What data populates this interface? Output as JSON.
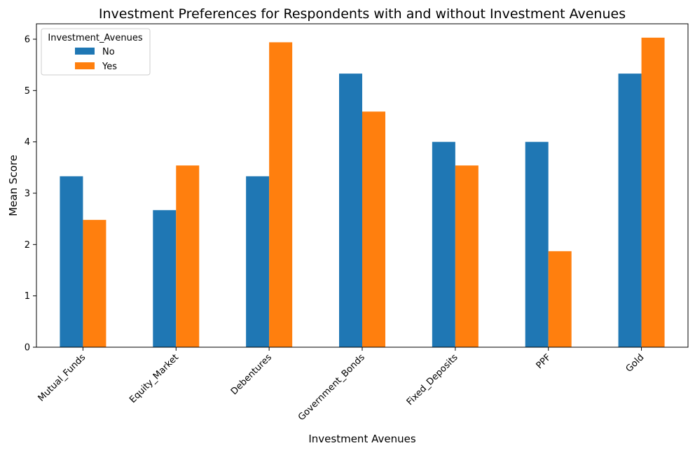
{
  "chart_data": {
    "type": "bar",
    "title": "Investment Preferences for Respondents with and without Investment Avenues",
    "xlabel": "Investment Avenues",
    "ylabel": "Mean Score",
    "categories": [
      "Mutual_Funds",
      "Equity_Market",
      "Debentures",
      "Government_Bonds",
      "Fixed_Deposits",
      "PPF",
      "Gold"
    ],
    "ylim": [
      0,
      6.3
    ],
    "yticks": [
      "0",
      "1",
      "2",
      "3",
      "4",
      "5",
      "6"
    ],
    "legend": {
      "title": "Investment_Avenues",
      "position": "top-left"
    },
    "grid": false,
    "series": [
      {
        "name": "No",
        "color": "#1f77b4",
        "values": [
          3.33,
          2.67,
          3.33,
          5.33,
          4.0,
          4.0,
          5.33
        ]
      },
      {
        "name": "Yes",
        "color": "#ff7f0e",
        "values": [
          2.48,
          3.54,
          5.94,
          4.59,
          3.54,
          1.87,
          6.03
        ]
      }
    ]
  }
}
